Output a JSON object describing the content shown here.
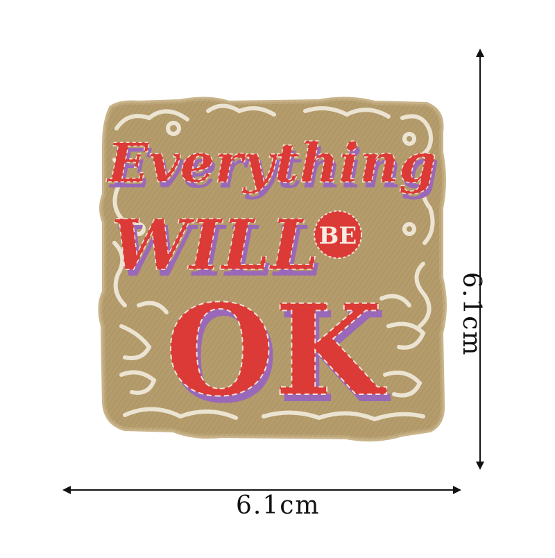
{
  "product": {
    "patch_text": [
      "Everything",
      "WILL",
      "BE",
      "OK"
    ]
  },
  "dimensions": {
    "width_label": "6.1cm",
    "height_label": "6.1cm"
  },
  "colors": {
    "fabric": "#b59c6c",
    "outline": "#e8dfca",
    "letter_red": "#dc3a36",
    "letter_shadow": "#9a68b8",
    "stitch": "#f4e4d8",
    "arrow": "#111111"
  }
}
